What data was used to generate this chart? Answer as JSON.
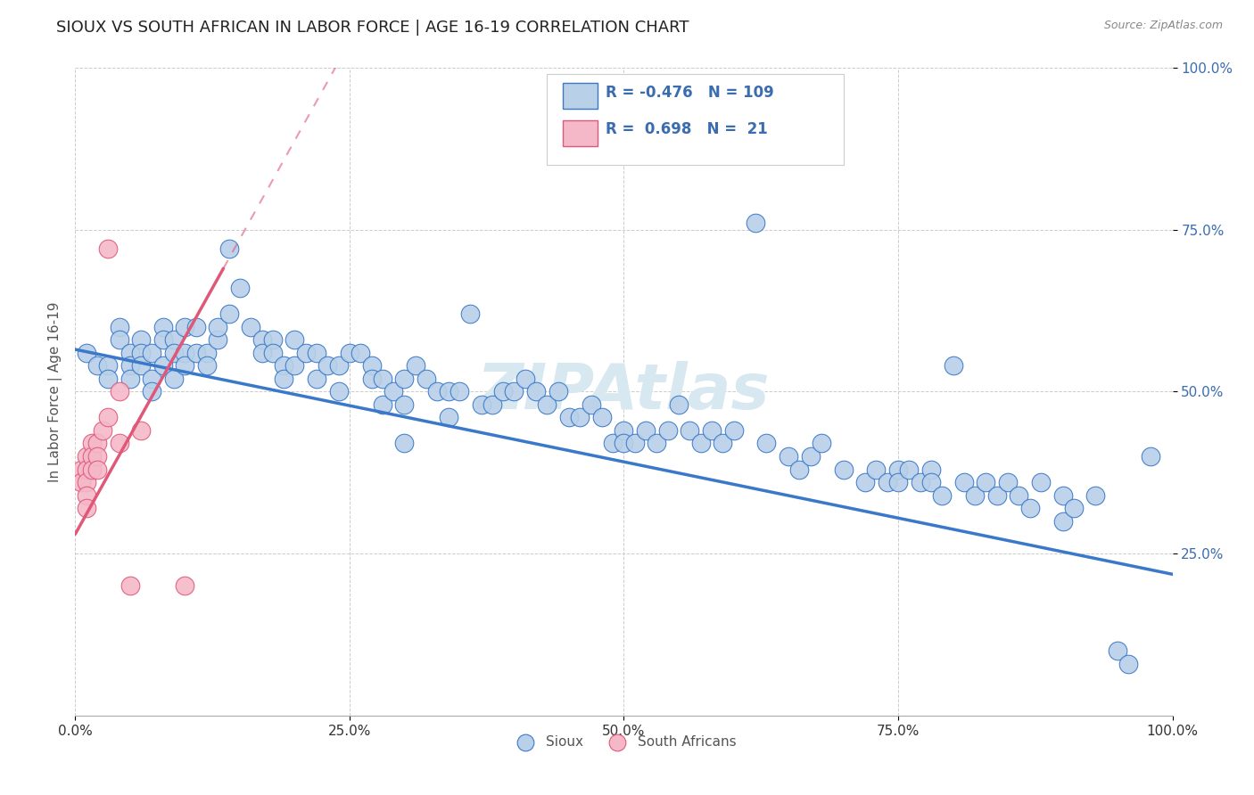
{
  "title": "SIOUX VS SOUTH AFRICAN IN LABOR FORCE | AGE 16-19 CORRELATION CHART",
  "source": "Source: ZipAtlas.com",
  "ylabel": "In Labor Force | Age 16-19",
  "xlim": [
    0.0,
    1.0
  ],
  "ylim": [
    0.0,
    1.0
  ],
  "xtick_labels": [
    "0.0%",
    "",
    "",
    "",
    "",
    "25.0%",
    "",
    "",
    "",
    "",
    "50.0%",
    "",
    "",
    "",
    "",
    "75.0%",
    "",
    "",
    "",
    "",
    "100.0%"
  ],
  "xtick_vals": [
    0.0,
    0.05,
    0.1,
    0.15,
    0.2,
    0.25,
    0.3,
    0.35,
    0.4,
    0.45,
    0.5,
    0.55,
    0.6,
    0.65,
    0.7,
    0.75,
    0.8,
    0.85,
    0.9,
    0.95,
    1.0
  ],
  "ytick_labels": [
    "25.0%",
    "50.0%",
    "75.0%",
    "100.0%"
  ],
  "ytick_vals": [
    0.25,
    0.5,
    0.75,
    1.0
  ],
  "sioux_R": "-0.476",
  "sioux_N": "109",
  "sa_R": "0.698",
  "sa_N": "21",
  "sioux_color": "#b8d0e8",
  "sa_color": "#f4b8c8",
  "sioux_line_color": "#3a78c9",
  "sa_line_color": "#e05878",
  "watermark_color": "#d8e8f0",
  "background_color": "#ffffff",
  "title_color": "#222222",
  "title_fontsize": 13,
  "legend_R_color": "#3a6cb0",
  "legend_N_color": "#333333",
  "sioux_line_start_y": 0.565,
  "sioux_line_end_y": 0.218,
  "sa_line_x0": 0.0,
  "sa_line_y0": 0.28,
  "sa_line_x1": 0.135,
  "sa_line_y1": 0.69
}
